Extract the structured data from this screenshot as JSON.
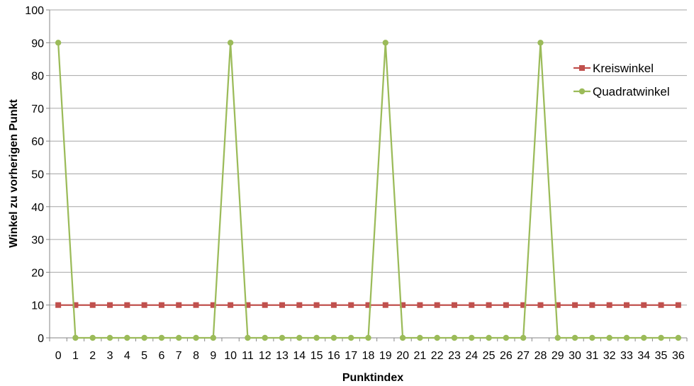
{
  "chart_data": {
    "type": "line",
    "title": "",
    "xlabel": "Punktindex",
    "ylabel": "Winkel zu  vorherigen Punkt",
    "ylim": [
      0,
      100
    ],
    "yticks": [
      0,
      10,
      20,
      30,
      40,
      50,
      60,
      70,
      80,
      90,
      100
    ],
    "grid": "horizontal",
    "legend_position": "right",
    "x": [
      0,
      1,
      2,
      3,
      4,
      5,
      6,
      7,
      8,
      9,
      10,
      11,
      12,
      13,
      14,
      15,
      16,
      17,
      18,
      19,
      20,
      21,
      22,
      23,
      24,
      25,
      26,
      27,
      28,
      29,
      30,
      31,
      32,
      33,
      34,
      35,
      36
    ],
    "series": [
      {
        "name": "Kreiswinkel",
        "color": "#c0504d",
        "marker": "square",
        "values": [
          10,
          10,
          10,
          10,
          10,
          10,
          10,
          10,
          10,
          10,
          10,
          10,
          10,
          10,
          10,
          10,
          10,
          10,
          10,
          10,
          10,
          10,
          10,
          10,
          10,
          10,
          10,
          10,
          10,
          10,
          10,
          10,
          10,
          10,
          10,
          10,
          10
        ]
      },
      {
        "name": "Quadratwinkel",
        "color": "#9bbb59",
        "marker": "circle",
        "values": [
          90,
          0,
          0,
          0,
          0,
          0,
          0,
          0,
          0,
          0,
          90,
          0,
          0,
          0,
          0,
          0,
          0,
          0,
          0,
          90,
          0,
          0,
          0,
          0,
          0,
          0,
          0,
          0,
          90,
          0,
          0,
          0,
          0,
          0,
          0,
          0,
          0
        ]
      }
    ]
  }
}
